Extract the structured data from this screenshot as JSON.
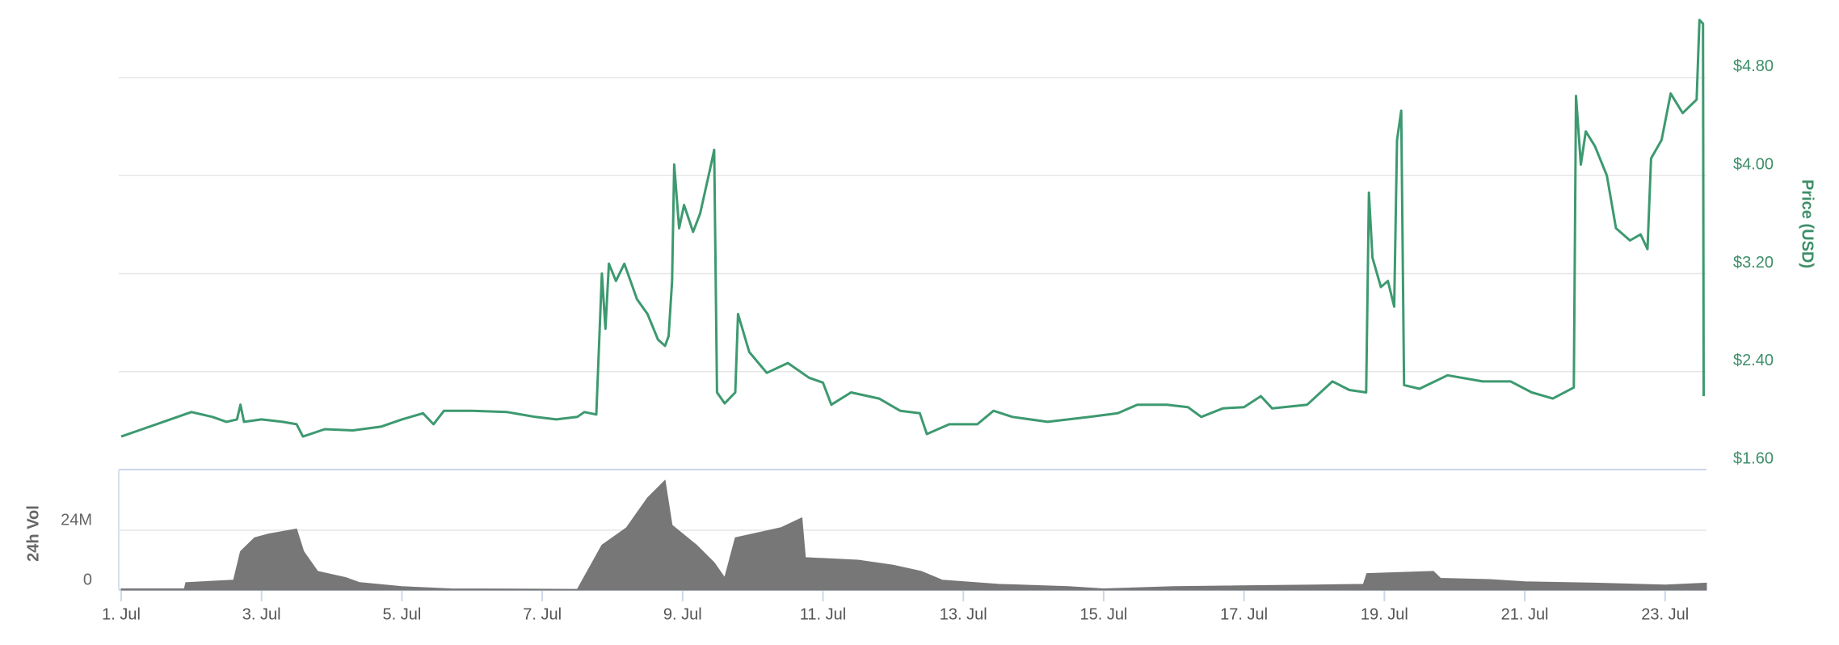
{
  "chart_data": [
    {
      "type": "line",
      "color": "#3d9970",
      "y_label": "Price (USD)",
      "x": [
        1.0,
        1.3,
        1.6,
        1.9,
        2.0,
        2.3,
        2.5,
        2.65,
        2.7,
        2.75,
        3.0,
        3.3,
        3.5,
        3.59,
        3.9,
        4.3,
        4.7,
        5.0,
        5.3,
        5.45,
        5.6,
        6.0,
        6.5,
        6.9,
        7.2,
        7.5,
        7.6,
        7.77,
        7.85,
        7.9,
        7.95,
        8.05,
        8.17,
        8.35,
        8.5,
        8.65,
        8.75,
        8.8,
        8.85,
        8.88,
        8.95,
        9.02,
        9.15,
        9.25,
        9.39,
        9.45,
        9.49,
        9.6,
        9.75,
        9.79,
        9.95,
        10.2,
        10.5,
        10.8,
        11.0,
        11.12,
        11.4,
        11.8,
        12.1,
        12.38,
        12.48,
        12.8,
        13.2,
        13.43,
        13.7,
        14.2,
        14.8,
        15.2,
        15.48,
        15.9,
        16.2,
        16.39,
        16.7,
        17.0,
        17.24,
        17.4,
        17.9,
        18.26,
        18.5,
        18.74,
        18.78,
        18.83,
        18.95,
        19.05,
        19.14,
        19.18,
        19.24,
        19.28,
        19.5,
        19.9,
        20.4,
        20.8,
        21.1,
        21.4,
        21.7,
        21.73,
        21.8,
        21.87,
        22.0,
        22.17,
        22.3,
        22.5,
        22.65,
        22.75,
        22.8,
        22.95,
        23.08,
        23.25,
        23.45,
        23.49,
        23.54,
        23.55
      ],
      "values": [
        1.87,
        1.93,
        1.99,
        2.05,
        2.07,
        2.03,
        1.99,
        2.01,
        2.13,
        1.99,
        2.01,
        1.99,
        1.97,
        1.87,
        1.93,
        1.92,
        1.95,
        2.01,
        2.06,
        1.97,
        2.08,
        2.08,
        2.07,
        2.03,
        2.01,
        2.03,
        2.07,
        2.05,
        3.2,
        2.75,
        3.28,
        3.14,
        3.28,
        2.99,
        2.87,
        2.66,
        2.61,
        2.69,
        3.14,
        4.09,
        3.57,
        3.76,
        3.54,
        3.69,
        4.05,
        4.21,
        2.23,
        2.14,
        2.23,
        2.87,
        2.56,
        2.39,
        2.47,
        2.35,
        2.31,
        2.13,
        2.23,
        2.18,
        2.08,
        2.06,
        1.89,
        1.97,
        1.97,
        2.08,
        2.03,
        1.99,
        2.03,
        2.06,
        2.13,
        2.13,
        2.11,
        2.03,
        2.1,
        2.11,
        2.2,
        2.1,
        2.13,
        2.32,
        2.25,
        2.23,
        3.86,
        3.33,
        3.09,
        3.14,
        2.93,
        4.29,
        4.53,
        2.29,
        2.26,
        2.37,
        2.32,
        2.32,
        2.23,
        2.18,
        2.27,
        4.65,
        4.09,
        4.36,
        4.24,
        4.0,
        3.57,
        3.47,
        3.52,
        3.4,
        4.14,
        4.29,
        4.67,
        4.51,
        4.62,
        5.27,
        5.24,
        2.2
      ],
      "ylim": [
        1.6,
        5.4
      ],
      "yticks": [
        {
          "value": 1.6,
          "label": "$1.60"
        },
        {
          "value": 2.4,
          "label": "$2.40"
        },
        {
          "value": 3.2,
          "label": "$3.20"
        },
        {
          "value": 4.0,
          "label": "$4.00"
        },
        {
          "value": 4.8,
          "label": "$4.80"
        }
      ],
      "xlim": [
        1,
        23.59
      ],
      "grid": true
    },
    {
      "type": "area",
      "color": "#777777",
      "y_label": "24h Vol",
      "x": [
        1.0,
        1.9,
        1.92,
        2.6,
        2.7,
        2.9,
        3.1,
        3.5,
        3.6,
        3.8,
        4.2,
        4.4,
        5.0,
        5.7,
        7.5,
        7.85,
        8.2,
        8.5,
        8.75,
        8.85,
        9.2,
        9.45,
        9.6,
        9.75,
        10.4,
        10.7,
        10.75,
        11.5,
        12.0,
        12.4,
        12.7,
        13.5,
        14.5,
        15.0,
        16.0,
        18.0,
        18.7,
        18.75,
        19.7,
        19.8,
        20.5,
        21.0,
        22.0,
        23.0,
        23.59
      ],
      "values": [
        500000,
        500000,
        3000000,
        4000000,
        15500000,
        21000000,
        22500000,
        24500000,
        15500000,
        7500000,
        5000000,
        3000000,
        1400000,
        500000,
        300000,
        18000000,
        25000000,
        37000000,
        44000000,
        26000000,
        18000000,
        11000000,
        5000000,
        21000000,
        25000000,
        29000000,
        13000000,
        12000000,
        10000000,
        7500000,
        4000000,
        2300000,
        1400000,
        500000,
        1400000,
        2000000,
        2300000,
        6600000,
        7500000,
        4700000,
        4200000,
        3300000,
        2800000,
        2000000,
        2800000
      ],
      "ylim": [
        0,
        48000000
      ],
      "yticks": [
        0,
        {
          "value": 24000000,
          "label": "24M"
        }
      ],
      "xlim": [
        1,
        23.59
      ],
      "xticks": [
        {
          "value": 1,
          "label": "1. Jul"
        },
        {
          "value": 3,
          "label": "3. Jul"
        },
        {
          "value": 5,
          "label": "5. Jul"
        },
        {
          "value": 7,
          "label": "7. Jul"
        },
        {
          "value": 9,
          "label": "9. Jul"
        },
        {
          "value": 11,
          "label": "11. Jul"
        },
        {
          "value": 13,
          "label": "13. Jul"
        },
        {
          "value": 15,
          "label": "15. Jul"
        },
        {
          "value": 17,
          "label": "17. Jul"
        },
        {
          "value": 19,
          "label": "19. Jul"
        },
        {
          "value": 21,
          "label": "21. Jul"
        },
        {
          "value": 23,
          "label": "23. Jul"
        }
      ],
      "grid": true
    }
  ]
}
